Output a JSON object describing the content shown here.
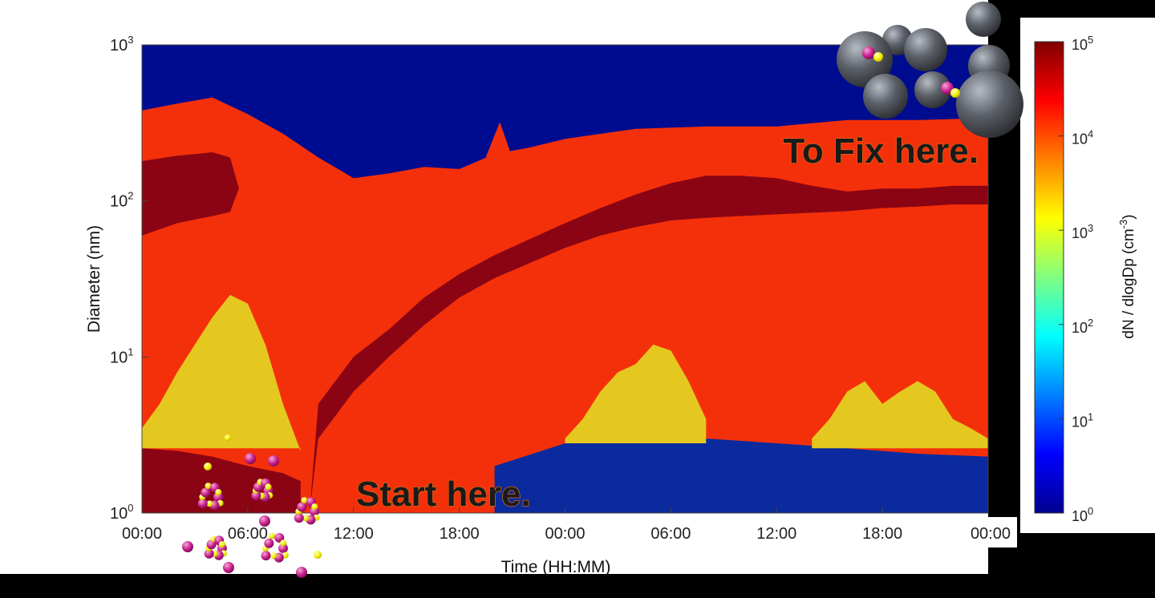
{
  "chart_data": {
    "type": "heatmap",
    "title": "",
    "xlabel": "Time (HH:MM)",
    "ylabel": "Diameter  (nm)",
    "x_tick_labels": [
      "00:00",
      "06:00",
      "12:00",
      "18:00",
      "00:00",
      "06:00",
      "12:00",
      "18:00",
      "00:00"
    ],
    "x_range_hours": [
      0,
      48
    ],
    "y_scale": "log",
    "y_range": [
      1,
      1000
    ],
    "y_ticks": [
      {
        "base": "10",
        "exp": "0",
        "value": 1
      },
      {
        "base": "10",
        "exp": "1",
        "value": 10
      },
      {
        "base": "10",
        "exp": "2",
        "value": 100
      },
      {
        "base": "10",
        "exp": "3",
        "value": 1000
      }
    ],
    "colorbar": {
      "label_main": "dN / dlogDp (cm",
      "label_exp": "-3",
      "label_close": ")",
      "scale": "log",
      "range": [
        1,
        100000
      ],
      "colormap": [
        "#00008f",
        "#0000ff",
        "#0080ff",
        "#00ffff",
        "#80ff80",
        "#ffff00",
        "#ff8000",
        "#ff0000",
        "#800000"
      ],
      "ticks": [
        {
          "base": "10",
          "exp": "0",
          "value": 1
        },
        {
          "base": "10",
          "exp": "1",
          "value": 10
        },
        {
          "base": "10",
          "exp": "2",
          "value": 100
        },
        {
          "base": "10",
          "exp": "3",
          "value": 1000
        },
        {
          "base": "10",
          "exp": "4",
          "value": 10000
        },
        {
          "base": "10",
          "exp": "5",
          "value": 100000
        }
      ]
    },
    "band_colors": {
      "background": "#000c8f",
      "main": "#f4300a",
      "mode": "#8a0414",
      "nucleation": "#e5c81f",
      "orange": "#f07d14",
      "low": "#0a2a9e"
    },
    "regions": {
      "upper_boundary": [
        [
          0,
          380
        ],
        [
          2,
          420
        ],
        [
          4,
          460
        ],
        [
          6,
          360
        ],
        [
          8,
          270
        ],
        [
          10,
          190
        ],
        [
          12,
          140
        ],
        [
          14,
          150
        ],
        [
          16,
          165
        ],
        [
          18,
          160
        ],
        [
          20,
          200
        ],
        [
          22,
          220
        ],
        [
          24,
          250
        ],
        [
          28,
          290
        ],
        [
          32,
          300
        ],
        [
          36,
          300
        ],
        [
          40,
          330
        ],
        [
          44,
          330
        ],
        [
          48,
          340
        ]
      ],
      "growth_mode_lower": [
        [
          9.5,
          1
        ],
        [
          10,
          3
        ],
        [
          12,
          6
        ],
        [
          14,
          10
        ],
        [
          16,
          16
        ],
        [
          18,
          24
        ],
        [
          20,
          32
        ],
        [
          22,
          40
        ],
        [
          24,
          50
        ],
        [
          26,
          60
        ],
        [
          28,
          68
        ],
        [
          30,
          75
        ],
        [
          32,
          78
        ],
        [
          34,
          80
        ],
        [
          36,
          82
        ],
        [
          38,
          84
        ],
        [
          40,
          86
        ],
        [
          42,
          90
        ],
        [
          44,
          92
        ],
        [
          46,
          95
        ],
        [
          48,
          95
        ]
      ],
      "growth_mode_upper": [
        [
          9.5,
          1
        ],
        [
          10,
          5
        ],
        [
          12,
          10
        ],
        [
          14,
          15
        ],
        [
          16,
          24
        ],
        [
          18,
          34
        ],
        [
          20,
          45
        ],
        [
          22,
          57
        ],
        [
          24,
          72
        ],
        [
          26,
          90
        ],
        [
          28,
          110
        ],
        [
          30,
          130
        ],
        [
          32,
          145
        ],
        [
          34,
          145
        ],
        [
          36,
          140
        ],
        [
          38,
          125
        ],
        [
          40,
          115
        ],
        [
          42,
          120
        ],
        [
          44,
          120
        ],
        [
          46,
          125
        ],
        [
          48,
          125
        ]
      ],
      "early_mode_top": [
        [
          0,
          180
        ],
        [
          2,
          195
        ],
        [
          4,
          205
        ],
        [
          5,
          190
        ],
        [
          5.5,
          120
        ]
      ],
      "early_mode_bottom": [
        [
          0,
          60
        ],
        [
          2,
          72
        ],
        [
          4,
          80
        ],
        [
          5,
          85
        ],
        [
          5.5,
          120
        ]
      ],
      "nucleation_left": [
        [
          0,
          3.5
        ],
        [
          1,
          5
        ],
        [
          2,
          8
        ],
        [
          3,
          12
        ],
        [
          4,
          18
        ],
        [
          5,
          25
        ],
        [
          6,
          22
        ],
        [
          7,
          12
        ],
        [
          8,
          5
        ],
        [
          9,
          2.5
        ]
      ],
      "nucleation_mid": [
        [
          24,
          3.0
        ],
        [
          25,
          4
        ],
        [
          26,
          6
        ],
        [
          27,
          8
        ],
        [
          28,
          9
        ],
        [
          29,
          12
        ],
        [
          30,
          11
        ],
        [
          31,
          7
        ],
        [
          32,
          4
        ]
      ],
      "nucleation_right": [
        [
          38,
          3.0
        ],
        [
          39,
          4
        ],
        [
          40,
          6
        ],
        [
          41,
          7
        ],
        [
          42,
          5
        ],
        [
          43,
          6
        ],
        [
          44,
          7
        ],
        [
          45,
          6
        ],
        [
          46,
          4
        ],
        [
          47,
          3.5
        ],
        [
          48,
          3
        ]
      ],
      "low_right_top": [
        [
          20,
          2
        ],
        [
          24,
          2.8
        ],
        [
          28,
          3.2
        ],
        [
          32,
          3
        ],
        [
          36,
          2.8
        ],
        [
          40,
          2.6
        ],
        [
          44,
          2.4
        ],
        [
          48,
          2.3
        ]
      ],
      "low_left_top": [
        [
          0,
          2.6
        ],
        [
          2,
          2.5
        ],
        [
          4,
          2.3
        ],
        [
          6,
          2.0
        ],
        [
          8,
          1.8
        ],
        [
          9,
          1.6
        ]
      ]
    }
  },
  "annotations": {
    "fix_here": "To Fix here.",
    "start_here": "Start here."
  }
}
